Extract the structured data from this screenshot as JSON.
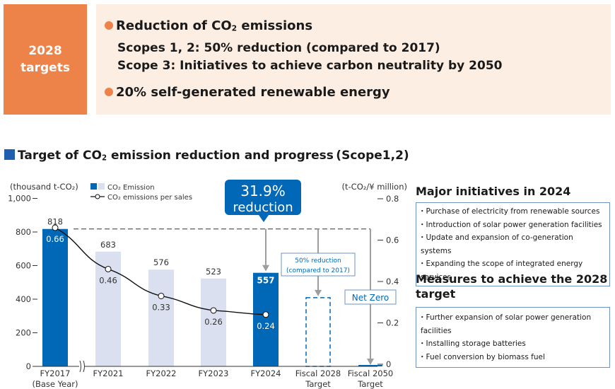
{
  "targets": {
    "badge_line1": "2028",
    "badge_line2": "targets",
    "item1_title_pre": "Reduction of CO",
    "item1_title_sub": "2",
    "item1_title_post": " emissions",
    "item1_detail1": "Scopes 1, 2: 50% reduction (compared to 2017)",
    "item1_detail2": "Scope 3: Initiatives to achieve carbon neutrality by 2050",
    "item2_title": "20% self-generated renewable energy"
  },
  "section": {
    "title_pre": "Target of CO",
    "title_sub": "2",
    "title_post": " emission reduction and progress (Scope1,2)"
  },
  "colors": {
    "accent_orange": "#ee834a",
    "panel_bg": "#fdeee3",
    "bar_dark": "#0068b7",
    "bar_light": "#dbe0f1",
    "arrow_gray": "#9e9e9e",
    "box_border": "#6e93c3"
  },
  "chart_data": {
    "type": "bar",
    "title": "Target of CO2 emission reduction and progress (Scope1,2)",
    "categories": [
      "FY2017",
      "FY2021",
      "FY2022",
      "FY2023",
      "FY2024",
      "Fiscal 2028",
      "Fiscal 2050"
    ],
    "category_sublabels": [
      "(Base Year)",
      "",
      "",
      "",
      "",
      "Target",
      "Target"
    ],
    "ylabel_left": "(thousand t-CO₂)",
    "ylabel_right": "(t-CO₂/¥ million)",
    "ylim_left": [
      0,
      1000
    ],
    "ylim_right": [
      0,
      0.8
    ],
    "yticks_left": [
      0,
      200,
      400,
      600,
      800,
      1000
    ],
    "yticks_left_labels": [
      "0",
      "200",
      "400",
      "600",
      "800",
      "1,000"
    ],
    "yticks_right": [
      0,
      0.2,
      0.4,
      0.6,
      0.8
    ],
    "yticks_right_labels": [
      "0",
      "0.2",
      "0.4",
      "0.6",
      "0.8"
    ],
    "series": [
      {
        "name": "CO₂ Emission",
        "type": "bar",
        "axis": "left",
        "values": [
          818,
          683,
          576,
          523,
          557,
          409,
          0
        ],
        "labels": [
          "818",
          "683",
          "576",
          "523",
          "557",
          "",
          ""
        ],
        "styles": [
          "dark",
          "light",
          "light",
          "light",
          "dark",
          "dashed",
          "dark"
        ]
      },
      {
        "name": "CO₂ emissions per sales",
        "type": "line",
        "axis": "right",
        "values": [
          0.66,
          0.46,
          0.33,
          0.26,
          0.24,
          null,
          null
        ],
        "labels": [
          "0.66",
          "0.46",
          "0.33",
          "0.26",
          "0.24",
          "",
          ""
        ]
      }
    ],
    "legend": {
      "bar_label_pre": "CO",
      "bar_label_sub": "2",
      "bar_label_post": " Emission",
      "line_label_pre": "CO",
      "line_label_sub": "2",
      "line_label_post": " emissions per sales",
      "position": "top-left"
    },
    "annotations": {
      "callout_value": "31.9%",
      "callout_text": "reduction",
      "target_2028_line1": "50% reduction",
      "target_2028_line2": "(compared to 2017)",
      "target_2050": "Net Zero"
    },
    "axis_break_between": [
      "FY2017",
      "FY2021"
    ]
  },
  "side": {
    "initiatives_heading": "Major initiatives in 2024",
    "initiatives": [
      "Purchase of electricity from renewable sources",
      "Introduction of solar power generation facilities",
      "Update and expansion of co-generation systems",
      "Expanding the scope of integrated energy services"
    ],
    "measures_heading": "Measures to achieve the 2028 target",
    "measures": [
      "Further expansion of solar power generation facilities",
      "Installing storage batteries",
      "Fuel conversion by biomass fuel"
    ]
  }
}
